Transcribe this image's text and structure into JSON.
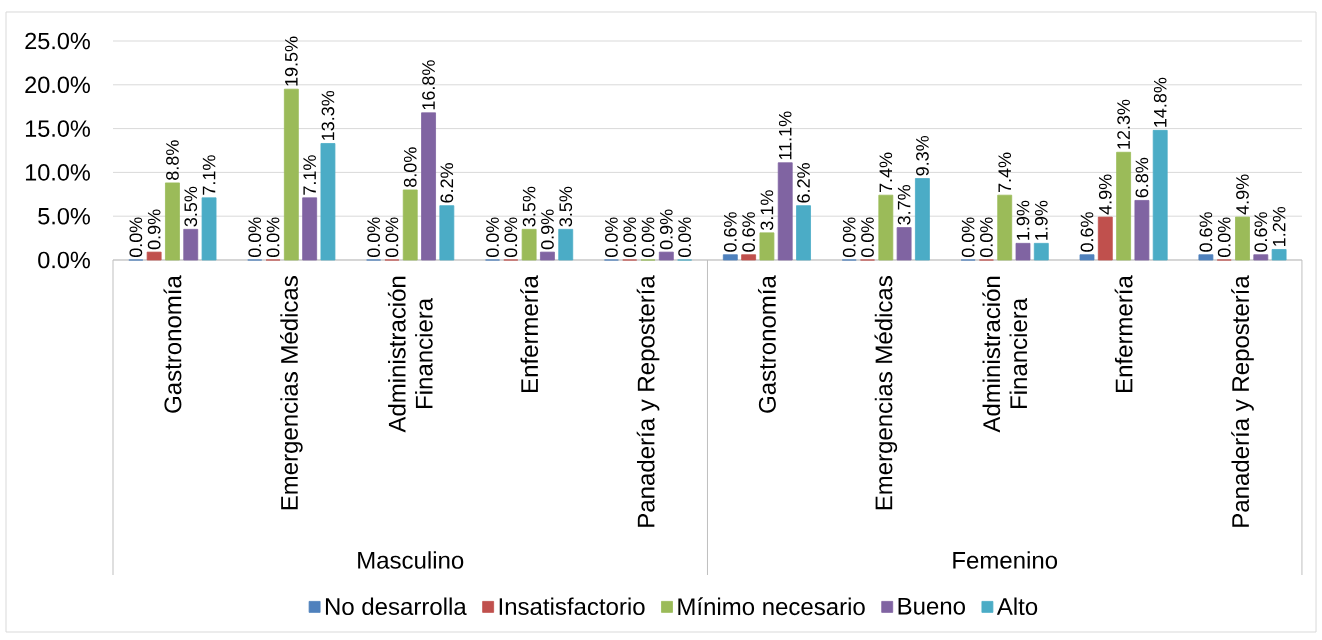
{
  "chart_data": {
    "type": "bar",
    "categories": [
      "Gastronomía",
      "Emergencias Médicas",
      "Administración Financiera",
      "Enfermería",
      "Panadería y Repostería",
      "Gastronomía",
      "Emergencias Médicas",
      "Administración Financiera",
      "Enfermería",
      "Panadería y Repostería"
    ],
    "annotations": [
      "Masculino",
      "Femenino"
    ],
    "series": [
      {
        "name": "No desarrolla",
        "color": "#4f81bd",
        "values": [
          0.0,
          0.0,
          0.0,
          0.0,
          0.0,
          0.6,
          0.0,
          0.0,
          0.6,
          0.6
        ],
        "value_labels": [
          "0.0%",
          "0.0%",
          "0.0%",
          "0.0%",
          "0.0%",
          "0.6%",
          "0.0%",
          "0.0%",
          "0.6%",
          "0.6%"
        ]
      },
      {
        "name": "Insatisfactorio",
        "color": "#c0504d",
        "values": [
          0.9,
          0.0,
          0.0,
          0.0,
          0.0,
          0.6,
          0.0,
          0.0,
          4.9,
          0.0
        ],
        "value_labels": [
          "0.9%",
          "0.0%",
          "0.0%",
          "0.0%",
          "0.0%",
          "0.6%",
          "0.0%",
          "0.0%",
          "4.9%",
          "0.0%"
        ]
      },
      {
        "name": "Mínimo necesario",
        "color": "#9bbb59",
        "values": [
          8.8,
          19.5,
          8.0,
          3.5,
          0.0,
          3.1,
          7.4,
          7.4,
          12.3,
          4.9
        ],
        "value_labels": [
          "8.8%",
          "19.5%",
          "8.0%",
          "3.5%",
          "0.0%",
          "3.1%",
          "7.4%",
          "7.4%",
          "12.3%",
          "4.9%"
        ]
      },
      {
        "name": "Bueno",
        "color": "#8064a2",
        "values": [
          3.5,
          7.1,
          16.8,
          0.9,
          0.9,
          11.1,
          3.7,
          1.9,
          6.8,
          0.6
        ],
        "value_labels": [
          "3.5%",
          "7.1%",
          "16.8%",
          "0.9%",
          "0.9%",
          "11.1%",
          "3.7%",
          "1.9%",
          "6.8%",
          "0.6%"
        ]
      },
      {
        "name": "Alto",
        "color": "#4bacc6",
        "values": [
          7.1,
          13.3,
          6.2,
          3.5,
          0.0,
          6.2,
          9.3,
          1.9,
          14.8,
          1.2
        ],
        "value_labels": [
          "7.1%",
          "13.3%",
          "6.2%",
          "3.5%",
          "0.0%",
          "6.2%",
          "9.3%",
          "1.9%",
          "14.8%",
          "1.2%"
        ]
      }
    ],
    "ylim": [
      0,
      25
    ],
    "yticks": [
      {
        "value": 0,
        "label": "0.0%"
      },
      {
        "value": 5,
        "label": "5.0%"
      },
      {
        "value": 10,
        "label": "10.0%"
      },
      {
        "value": 15,
        "label": "15.0%"
      },
      {
        "value": 20,
        "label": "20.0%"
      },
      {
        "value": 25,
        "label": "25.0%"
      }
    ],
    "grid": "y",
    "legend": "bottom"
  }
}
